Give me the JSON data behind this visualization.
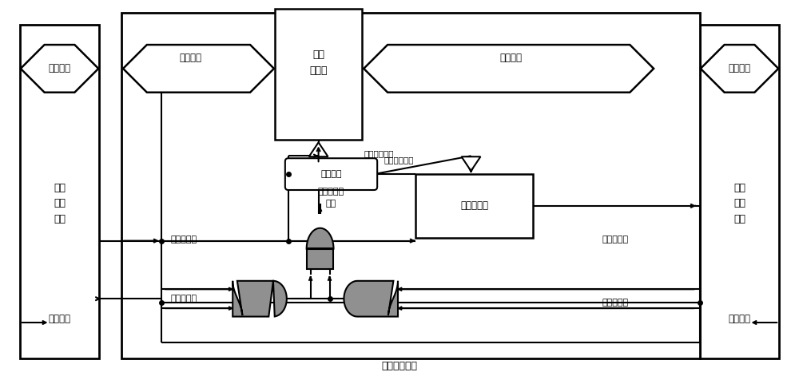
{
  "bg_color": "#ffffff",
  "lc": "#000000",
  "gate_fill": "#909090",
  "lw": 1.5,
  "labels": {
    "send_data": "发送数据",
    "receive_data": "接收数据",
    "register_data": "寄存数据",
    "latch_data": "锁存数据",
    "data_latch_enable": "数据锁存使能",
    "request_latch_enable": "请求锁存使能",
    "send_request": "发送端请求",
    "receive_request": "接收端请求",
    "send_response": "发送端响应",
    "receive_response": "接收端响应",
    "valid_signal_left": "有效信号",
    "valid_signal_right": "有效信号",
    "data_latch": "数据\n锁存器",
    "delay_circuit": "延时电路",
    "recv_decode_1": "接收与解码",
    "recv_decode_2": "模块",
    "request_latch": "请求锁存器",
    "async_module": "异步传输模块",
    "send_module": "数据\n发送\n模块",
    "recv_module": "数据\n接收\n模块"
  }
}
